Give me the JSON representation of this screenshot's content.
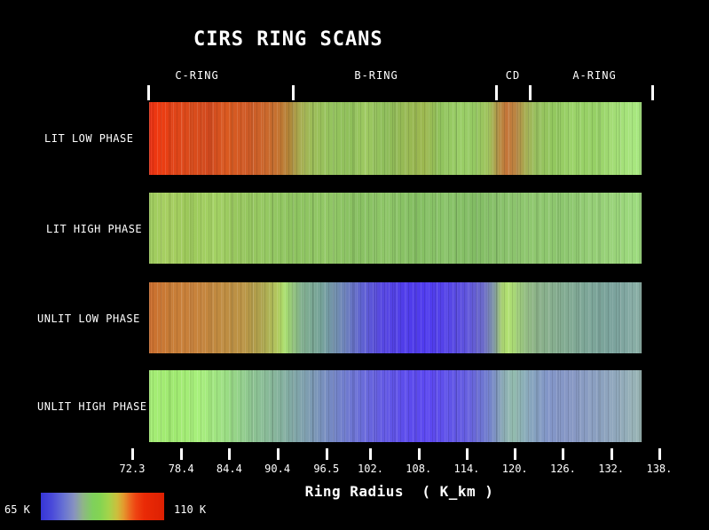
{
  "title": "CIRS RING SCANS",
  "colors": {
    "background": "#000000",
    "text": "#ffffff",
    "tick": "#ffffff"
  },
  "chart_data": {
    "type": "heatmap",
    "title": "CIRS RING SCANS",
    "xlabel": "Ring Radius  ( K_km )",
    "x_tick_values": [
      72.3,
      78.4,
      84.4,
      90.4,
      96.5,
      102,
      108,
      114,
      120,
      126,
      132,
      138
    ],
    "x_tick_labels": [
      "72.3",
      "78.4",
      "84.4",
      "90.4",
      "96.5",
      "102.",
      "108.",
      "114.",
      "120.",
      "126.",
      "132.",
      "138."
    ],
    "x_range_kkm": [
      72.3,
      138.0
    ],
    "bars_extent_kkm": [
      74.4,
      135.8
    ],
    "ring_boundaries_kkm": [
      74.25,
      92.3,
      117.7,
      121.9,
      137.1
    ],
    "ring_region_labels": [
      "C-RING",
      "B-RING",
      "CD",
      "A-RING"
    ],
    "colorbar": {
      "min_label": "65 K",
      "max_label": "110 K",
      "min_value_k": 65,
      "max_value_k": 110,
      "stops": [
        [
          0,
          "#3636d6"
        ],
        [
          9,
          "#4a4ada"
        ],
        [
          18,
          "#6670d4"
        ],
        [
          27,
          "#8792c0"
        ],
        [
          34,
          "#8fb588"
        ],
        [
          42,
          "#7fd05c"
        ],
        [
          48,
          "#84d452"
        ],
        [
          55,
          "#a4d44a"
        ],
        [
          62,
          "#cdbe3c"
        ],
        [
          67,
          "#e39a2e"
        ],
        [
          72,
          "#ec6a20"
        ],
        [
          77,
          "#ee4412"
        ],
        [
          84,
          "#ea2a06"
        ],
        [
          100,
          "#dd2002"
        ]
      ]
    },
    "rows": [
      {
        "label": "LIT LOW PHASE",
        "stops": [
          [
            0,
            "#e73014"
          ],
          [
            2,
            "#ef3a10"
          ],
          [
            5,
            "#e04418"
          ],
          [
            9,
            "#da4d1c"
          ],
          [
            12,
            "#d1491e"
          ],
          [
            16,
            "#da5a20"
          ],
          [
            20,
            "#ce5a26"
          ],
          [
            23,
            "#cb642a"
          ],
          [
            26,
            "#c67230"
          ],
          [
            28.5,
            "#b08538"
          ],
          [
            30.5,
            "#a8ab50"
          ],
          [
            33,
            "#9dbd58"
          ],
          [
            37,
            "#95c45e"
          ],
          [
            41,
            "#8fbf5a"
          ],
          [
            44,
            "#9fca62"
          ],
          [
            48,
            "#8dbd5a"
          ],
          [
            52,
            "#97b954"
          ],
          [
            56,
            "#9db850"
          ],
          [
            59,
            "#90c25c"
          ],
          [
            63,
            "#9bcf68"
          ],
          [
            66,
            "#94c962"
          ],
          [
            69,
            "#a0c25c"
          ],
          [
            70.8,
            "#b29448"
          ],
          [
            72.6,
            "#c47438"
          ],
          [
            74.6,
            "#ba8844"
          ],
          [
            76.4,
            "#a6ad52"
          ],
          [
            78.5,
            "#99c160"
          ],
          [
            82,
            "#92c75e"
          ],
          [
            86,
            "#9cd46a"
          ],
          [
            90,
            "#95cf64"
          ],
          [
            94,
            "#a2dc74"
          ],
          [
            100,
            "#a9ea82"
          ]
        ]
      },
      {
        "label": "LIT HIGH PHASE",
        "stops": [
          [
            0,
            "#9ecb5e"
          ],
          [
            4,
            "#a8d062"
          ],
          [
            8,
            "#9cc85a"
          ],
          [
            13,
            "#a4d264"
          ],
          [
            18,
            "#97c65e"
          ],
          [
            24,
            "#95c862"
          ],
          [
            30,
            "#8dc360"
          ],
          [
            36,
            "#92c866"
          ],
          [
            42,
            "#88c062"
          ],
          [
            48,
            "#8ec668"
          ],
          [
            54,
            "#84be62"
          ],
          [
            60,
            "#8ac46a"
          ],
          [
            66,
            "#82bc64"
          ],
          [
            72,
            "#8ac26c"
          ],
          [
            78,
            "#90c870"
          ],
          [
            84,
            "#8cc66e"
          ],
          [
            90,
            "#95ce76"
          ],
          [
            95,
            "#9ad47a"
          ],
          [
            100,
            "#9edd80"
          ]
        ]
      },
      {
        "label": "UNLIT LOW PHASE",
        "stops": [
          [
            0,
            "#cc6e2e"
          ],
          [
            4,
            "#c87c36"
          ],
          [
            9,
            "#c8823c"
          ],
          [
            14,
            "#c08a40"
          ],
          [
            19,
            "#bb9446"
          ],
          [
            23,
            "#aca44e"
          ],
          [
            26,
            "#b2c85e"
          ],
          [
            27.5,
            "#aadf6e"
          ],
          [
            29,
            "#96c87a"
          ],
          [
            31,
            "#80ae8e"
          ],
          [
            35,
            "#76a39a"
          ],
          [
            39,
            "#7088b6"
          ],
          [
            43,
            "#6064d0"
          ],
          [
            47,
            "#5748e0"
          ],
          [
            52,
            "#4f3cea"
          ],
          [
            57,
            "#503cee"
          ],
          [
            61,
            "#5646e6"
          ],
          [
            65,
            "#6056da"
          ],
          [
            68,
            "#6c6cc8"
          ],
          [
            70,
            "#7e96a4"
          ],
          [
            71.6,
            "#a6ce72"
          ],
          [
            72.8,
            "#b2e170"
          ],
          [
            74.4,
            "#a6d678"
          ],
          [
            76.4,
            "#93bc82"
          ],
          [
            79,
            "#8bb18a"
          ],
          [
            84,
            "#83ac92"
          ],
          [
            89,
            "#7da698"
          ],
          [
            94,
            "#7aa29c"
          ],
          [
            97,
            "#82a8a2"
          ],
          [
            100,
            "#8db2a8"
          ]
        ]
      },
      {
        "label": "UNLIT HIGH PHASE",
        "stops": [
          [
            0,
            "#a6ee76"
          ],
          [
            5,
            "#9fe970"
          ],
          [
            10,
            "#a8f07c"
          ],
          [
            16,
            "#9adc84"
          ],
          [
            21,
            "#8dc492"
          ],
          [
            27,
            "#84b09e"
          ],
          [
            32,
            "#7e9eb0"
          ],
          [
            37,
            "#7588c4"
          ],
          [
            42,
            "#6c72d6"
          ],
          [
            47,
            "#645ce2"
          ],
          [
            52,
            "#5c4cec"
          ],
          [
            57,
            "#5c48f0"
          ],
          [
            61,
            "#6054e8"
          ],
          [
            65,
            "#6660de"
          ],
          [
            69,
            "#7280cc"
          ],
          [
            72,
            "#8cacb4"
          ],
          [
            74,
            "#93bcae"
          ],
          [
            77,
            "#88a8bc"
          ],
          [
            81,
            "#8295c8"
          ],
          [
            86,
            "#8798c4"
          ],
          [
            91,
            "#8ba0c0"
          ],
          [
            95,
            "#90a8bc"
          ],
          [
            100,
            "#9ab6b4"
          ]
        ]
      }
    ]
  }
}
